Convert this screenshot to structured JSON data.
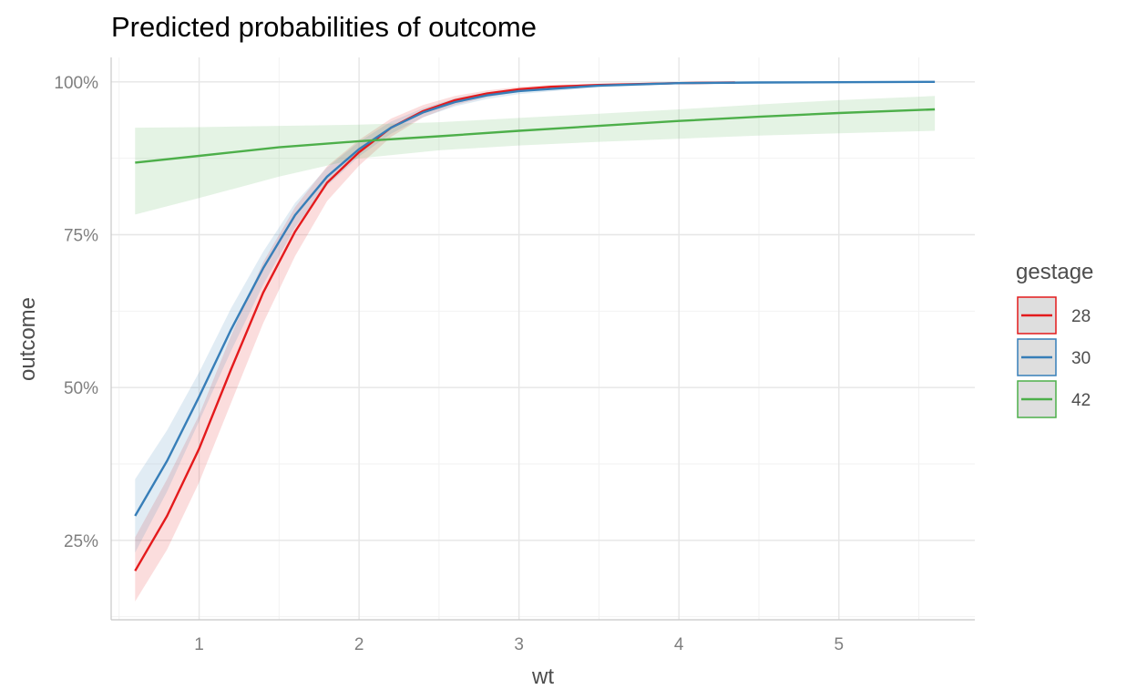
{
  "chart_data": {
    "type": "line",
    "title": "Predicted probabilities of outcome",
    "xlabel": "wt",
    "ylabel": "outcome",
    "xlim": [
      0.45,
      5.85
    ],
    "ylim": [
      0.12,
      1.04
    ],
    "x_ticks": [
      1,
      2,
      3,
      4,
      5
    ],
    "x_tick_labels": [
      "1",
      "2",
      "3",
      "4",
      "5"
    ],
    "y_ticks": [
      0.25,
      0.5,
      0.75,
      1.0
    ],
    "y_tick_labels": [
      "25%",
      "50%",
      "75%",
      "100%"
    ],
    "grid": true,
    "confidence_bands": true,
    "legend": {
      "title": "gestage",
      "position": "right"
    },
    "series": [
      {
        "name": "28",
        "color": "#e41a1c",
        "x": [
          0.6,
          0.8,
          1.0,
          1.2,
          1.4,
          1.6,
          1.8,
          2.0,
          2.2,
          2.4,
          2.6,
          2.8,
          3.0,
          3.2,
          3.5,
          4.0,
          4.35
        ],
        "y": [
          0.2,
          0.29,
          0.4,
          0.53,
          0.655,
          0.755,
          0.835,
          0.885,
          0.925,
          0.952,
          0.97,
          0.981,
          0.988,
          0.992,
          0.995,
          0.998,
          0.999
        ],
        "lower": [
          0.15,
          0.235,
          0.345,
          0.475,
          0.605,
          0.715,
          0.805,
          0.863,
          0.91,
          0.942,
          0.962,
          0.975,
          0.984,
          0.989,
          0.993,
          0.997,
          0.998
        ],
        "upper": [
          0.255,
          0.35,
          0.455,
          0.585,
          0.705,
          0.795,
          0.862,
          0.905,
          0.94,
          0.962,
          0.977,
          0.986,
          0.992,
          0.995,
          0.997,
          0.999,
          1.0
        ]
      },
      {
        "name": "30",
        "color": "#377eb8",
        "x": [
          0.6,
          0.8,
          1.0,
          1.2,
          1.4,
          1.6,
          1.8,
          2.0,
          2.2,
          2.4,
          2.6,
          2.8,
          3.0,
          3.5,
          4.0,
          4.5,
          5.0,
          5.6
        ],
        "y": [
          0.29,
          0.38,
          0.485,
          0.595,
          0.695,
          0.782,
          0.845,
          0.89,
          0.925,
          0.95,
          0.967,
          0.978,
          0.985,
          0.994,
          0.998,
          0.999,
          0.9995,
          1.0
        ],
        "lower": [
          0.23,
          0.33,
          0.445,
          0.56,
          0.668,
          0.762,
          0.83,
          0.878,
          0.915,
          0.942,
          0.96,
          0.972,
          0.98,
          0.991,
          0.996,
          0.998,
          0.999,
          0.9995
        ],
        "upper": [
          0.35,
          0.43,
          0.525,
          0.63,
          0.722,
          0.802,
          0.86,
          0.902,
          0.935,
          0.957,
          0.973,
          0.983,
          0.989,
          0.996,
          0.999,
          1.0,
          1.0,
          1.0
        ]
      },
      {
        "name": "42",
        "color": "#4daf4a",
        "x": [
          0.6,
          1.0,
          1.5,
          2.0,
          2.5,
          3.0,
          3.5,
          4.0,
          4.5,
          5.0,
          5.6
        ],
        "y": [
          0.868,
          0.879,
          0.893,
          0.903,
          0.911,
          0.92,
          0.928,
          0.936,
          0.943,
          0.949,
          0.955
        ],
        "lower": [
          0.783,
          0.81,
          0.845,
          0.875,
          0.888,
          0.896,
          0.902,
          0.907,
          0.912,
          0.916,
          0.92
        ],
        "upper": [
          0.925,
          0.926,
          0.928,
          0.93,
          0.934,
          0.941,
          0.948,
          0.955,
          0.963,
          0.97,
          0.977
        ]
      }
    ]
  }
}
